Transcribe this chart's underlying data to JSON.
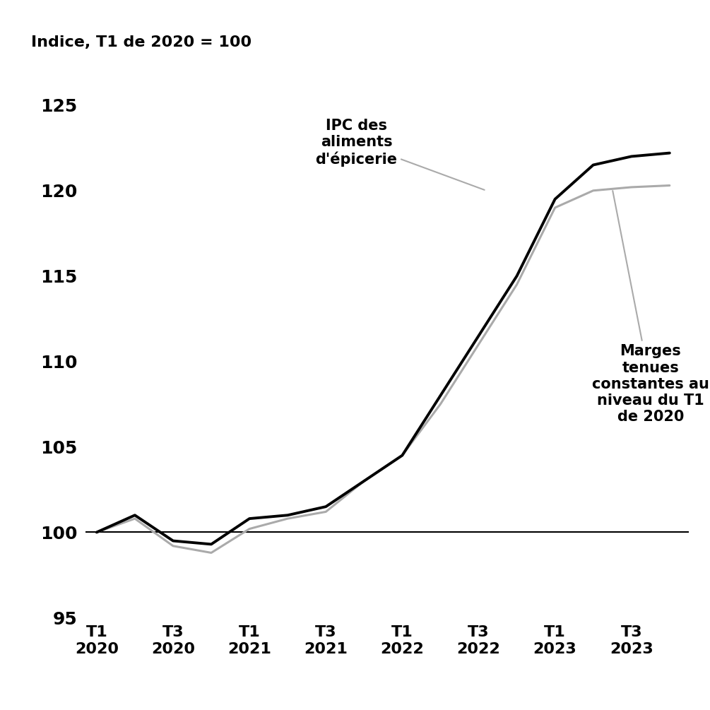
{
  "ylabel": "Indice, T1 de 2020 = 100",
  "ylim": [
    95,
    127
  ],
  "yticks": [
    95,
    100,
    105,
    110,
    115,
    120,
    125
  ],
  "xtick_labels": [
    "T1\n2020",
    "T3\n2020",
    "T1\n2021",
    "T3\n2021",
    "T1\n2022",
    "T3\n2022",
    "T1\n2023",
    "T3\n2023"
  ],
  "ipc_color": "#000000",
  "marges_color": "#aaaaaa",
  "ipc_linewidth": 2.8,
  "marges_linewidth": 2.2,
  "background_color": "#ffffff",
  "annotation_ipc": "IPC des\naliments\nd'épicerie",
  "annotation_marges": "Marges\ntenues\nconstantes au\nniveau du T1\nde 2020",
  "ipc_data": [
    100.0,
    101.0,
    99.5,
    99.3,
    100.8,
    101.0,
    101.5,
    103.0,
    104.5,
    108.0,
    111.5,
    115.0,
    119.5,
    121.5,
    122.0,
    122.2
  ],
  "marges_data": [
    100.0,
    100.8,
    99.2,
    98.8,
    100.2,
    100.8,
    101.2,
    103.0,
    104.5,
    107.5,
    111.0,
    114.5,
    119.0,
    120.0,
    120.2,
    120.3
  ],
  "x_values": [
    0,
    1,
    2,
    3,
    4,
    5,
    6,
    7,
    8,
    9,
    10,
    11,
    12,
    13,
    14,
    15
  ]
}
